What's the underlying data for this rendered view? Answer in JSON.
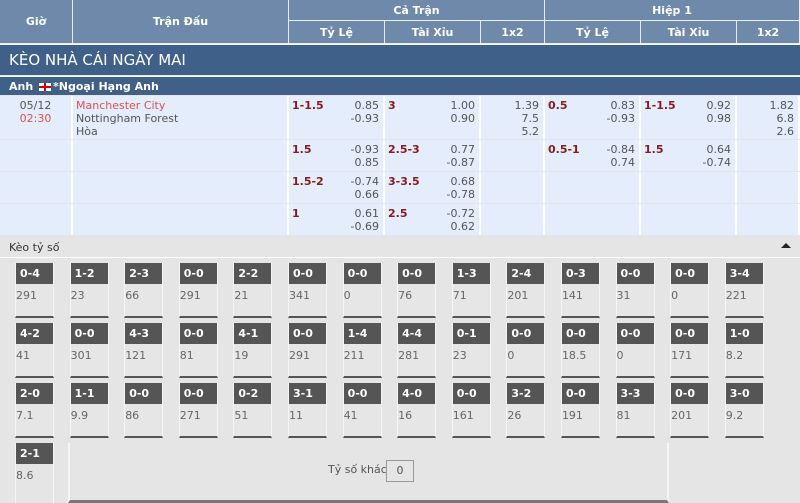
{
  "header": {
    "gio": "Giờ",
    "tran_dau": "Trận Đấu",
    "ca_tran": "Cả Trận",
    "hiep1": "Hiệp 1",
    "ty_le": "Tỷ Lệ",
    "tai_xiu": "Tài Xỉu",
    "x12": "1x2"
  },
  "title": "KÈO NHÀ CÁI NGÀY MAI",
  "league": {
    "country": "Anh",
    "name": "*Ngoại Hạng Anh",
    "flag": "england-flag-icon"
  },
  "match": {
    "date": "05/12",
    "time": "02:30",
    "home": "Manchester City",
    "away": "Nottingham Forest",
    "draw": "Hòa"
  },
  "colors": {
    "home": "#e0524d",
    "handicap": "#8b1a1a",
    "header": "#6f89ab",
    "title_bar": "#3f6088"
  },
  "rows": [
    {
      "ft_hdp": "1-1.5",
      "ft_hdp_o": [
        "0.85",
        "-0.93"
      ],
      "ft_ou": "3",
      "ft_ou_o": [
        "1.00",
        "0.90"
      ],
      "ft_1x2": [
        "1.39",
        "7.5",
        "5.2"
      ],
      "h1_hdp": "0.5",
      "h1_hdp_o": [
        "0.83",
        "-0.93"
      ],
      "h1_ou": "1-1.5",
      "h1_ou_o": [
        "0.92",
        "0.98"
      ],
      "h1_1x2": [
        "1.82",
        "6.8",
        "2.6"
      ]
    },
    {
      "ft_hdp": "1.5",
      "ft_hdp_o": [
        "-0.93",
        "0.85"
      ],
      "ft_ou": "2.5-3",
      "ft_ou_o": [
        "0.77",
        "-0.87"
      ],
      "ft_1x2": [],
      "h1_hdp": "0.5-1",
      "h1_hdp_o": [
        "-0.84",
        "0.74"
      ],
      "h1_ou": "1.5",
      "h1_ou_o": [
        "0.64",
        "-0.74"
      ],
      "h1_1x2": []
    },
    {
      "ft_hdp": "1.5-2",
      "ft_hdp_o": [
        "-0.74",
        "0.66"
      ],
      "ft_ou": "3-3.5",
      "ft_ou_o": [
        "0.68",
        "-0.78"
      ],
      "ft_1x2": [],
      "h1_hdp": "",
      "h1_hdp_o": [],
      "h1_ou": "",
      "h1_ou_o": [],
      "h1_1x2": []
    },
    {
      "ft_hdp": "1",
      "ft_hdp_o": [
        "0.61",
        "-0.69"
      ],
      "ft_ou": "2.5",
      "ft_ou_o": [
        "-0.72",
        "0.62"
      ],
      "ft_1x2": [],
      "h1_hdp": "",
      "h1_hdp_o": [],
      "h1_ou": "",
      "h1_ou_o": [],
      "h1_1x2": []
    }
  ],
  "correct_score": {
    "title": "Kèo tỷ số",
    "toggle_icon": "caret-up-icon",
    "tiles": [
      [
        "0-4",
        "291"
      ],
      [
        "1-2",
        "23"
      ],
      [
        "2-3",
        "66"
      ],
      [
        "0-0",
        "291"
      ],
      [
        "2-2",
        "21"
      ],
      [
        "0-0",
        "341"
      ],
      [
        "0-0",
        "0"
      ],
      [
        "0-0",
        "76"
      ],
      [
        "1-3",
        "71"
      ],
      [
        "2-4",
        "201"
      ],
      [
        "0-3",
        "141"
      ],
      [
        "0-0",
        "31"
      ],
      [
        "0-0",
        "0"
      ],
      [
        "3-4",
        "221"
      ],
      [
        "4-2",
        "41"
      ],
      [
        "0-0",
        "301"
      ],
      [
        "4-3",
        "121"
      ],
      [
        "0-0",
        "81"
      ],
      [
        "4-1",
        "19"
      ],
      [
        "0-0",
        "291"
      ],
      [
        "1-4",
        "211"
      ],
      [
        "4-4",
        "281"
      ],
      [
        "0-1",
        "23"
      ],
      [
        "0-0",
        "0"
      ],
      [
        "0-0",
        "18.5"
      ],
      [
        "0-0",
        "0"
      ],
      [
        "0-0",
        "171"
      ],
      [
        "1-0",
        "8.2"
      ],
      [
        "2-0",
        "7.1"
      ],
      [
        "1-1",
        "9.9"
      ],
      [
        "0-0",
        "86"
      ],
      [
        "0-0",
        "271"
      ],
      [
        "0-2",
        "51"
      ],
      [
        "3-1",
        "11"
      ],
      [
        "0-0",
        "41"
      ],
      [
        "4-0",
        "16"
      ],
      [
        "0-0",
        "161"
      ],
      [
        "3-2",
        "26"
      ],
      [
        "0-0",
        "191"
      ],
      [
        "3-3",
        "81"
      ],
      [
        "0-0",
        "201"
      ],
      [
        "3-0",
        "9.2"
      ]
    ],
    "last_tile": [
      "2-1",
      "8.6"
    ],
    "other_label": "Tỷ số khác",
    "other_value": "0"
  }
}
